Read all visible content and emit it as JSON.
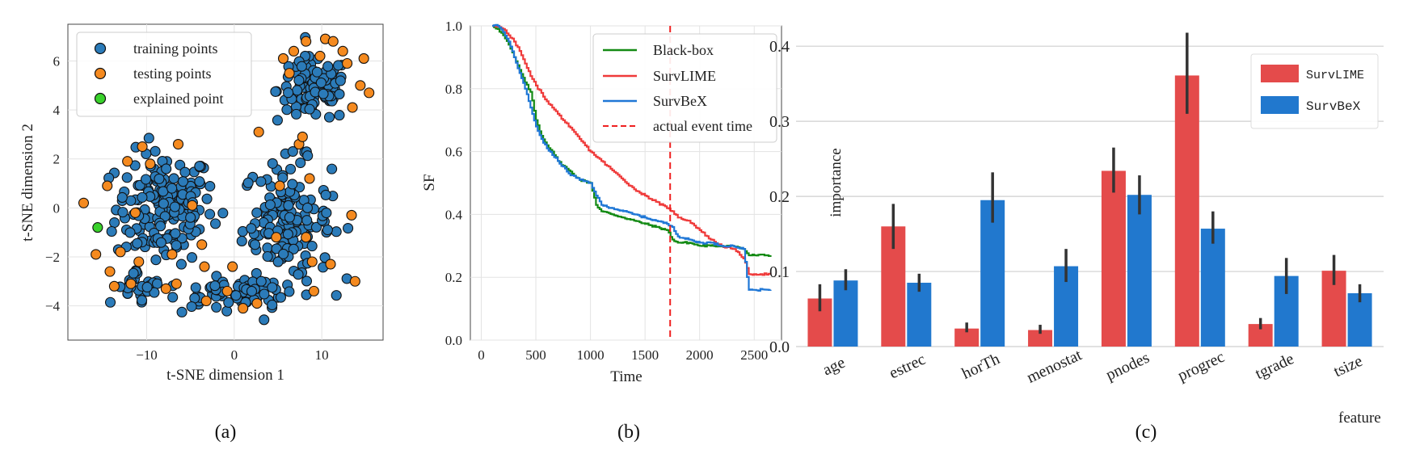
{
  "chart_data": [
    {
      "type": "scatter",
      "caption": "(a)",
      "xlabel": "t-SNE dimension 1",
      "ylabel": "t-SNE dimension 2",
      "xlim": [
        -19,
        17
      ],
      "ylim": [
        -5.4,
        7.5
      ],
      "xticks": [
        -10,
        0,
        10
      ],
      "xtick_labels": [
        "−10",
        "0",
        "10"
      ],
      "yticks": [
        -4,
        -2,
        0,
        2,
        4,
        6
      ],
      "ytick_labels": [
        "−4",
        "−2",
        "0",
        "2",
        "4",
        "6"
      ],
      "legend": [
        "training points",
        "testing points",
        "explained point"
      ],
      "colors": {
        "training": "#2b7bb9",
        "testing": "#f58a1f",
        "explained": "#39d12b"
      },
      "series": [
        {
          "name": "testing points",
          "points": [
            [
              -17.2,
              0.2
            ],
            [
              -14.5,
              0.9
            ],
            [
              -15.8,
              -1.9
            ],
            [
              -14.2,
              -2.6
            ],
            [
              -13.7,
              -3.2
            ],
            [
              -13.0,
              -1.8
            ],
            [
              -12.2,
              1.9
            ],
            [
              -10.5,
              2.5
            ],
            [
              -9.6,
              1.8
            ],
            [
              -11.3,
              -0.2
            ],
            [
              -10.9,
              -2.2
            ],
            [
              -11.8,
              -3.1
            ],
            [
              -7.8,
              -3.3
            ],
            [
              -6.6,
              -3.1
            ],
            [
              -6.4,
              2.6
            ],
            [
              -4.8,
              0.1
            ],
            [
              -3.7,
              -1.5
            ],
            [
              -3.4,
              -2.4
            ],
            [
              -3.2,
              -3.8
            ],
            [
              -0.8,
              -3.4
            ],
            [
              -0.2,
              -2.4
            ],
            [
              1.0,
              -4.1
            ],
            [
              2.6,
              -3.9
            ],
            [
              2.8,
              3.1
            ],
            [
              4.8,
              -1.2
            ],
            [
              5.2,
              0.9
            ],
            [
              5.6,
              6.1
            ],
            [
              6.3,
              5.5
            ],
            [
              6.8,
              6.4
            ],
            [
              7.4,
              2.6
            ],
            [
              8.2,
              6.8
            ],
            [
              8.6,
              1.2
            ],
            [
              8.2,
              -1.2
            ],
            [
              8.9,
              -2.2
            ],
            [
              9.1,
              -3.4
            ],
            [
              9.8,
              6.2
            ],
            [
              10.4,
              6.9
            ],
            [
              11.3,
              6.8
            ],
            [
              12.4,
              6.4
            ],
            [
              12.9,
              5.9
            ],
            [
              13.5,
              4.1
            ],
            [
              13.4,
              -0.3
            ],
            [
              13.8,
              -3.0
            ],
            [
              14.4,
              5.0
            ],
            [
              14.8,
              6.1
            ],
            [
              15.4,
              4.7
            ],
            [
              7.8,
              2.9
            ],
            [
              11.0,
              -2.3
            ],
            [
              -7.1,
              -1.9
            ]
          ]
        },
        {
          "name": "explained point",
          "points": [
            [
              -15.6,
              -0.8
            ]
          ]
        }
      ]
    },
    {
      "type": "line",
      "caption": "(b)",
      "xlabel": "Time",
      "ylabel": "SF",
      "xlim": [
        -100,
        2750
      ],
      "ylim": [
        0.0,
        1.0
      ],
      "xticks": [
        0,
        500,
        1000,
        1500,
        2000,
        2500
      ],
      "yticks": [
        0.0,
        0.2,
        0.4,
        0.6,
        0.8,
        1.0
      ],
      "ytick_labels": [
        "0.0",
        "0.2",
        "0.4",
        "0.6",
        "0.8",
        "1.0"
      ],
      "actual_event_time": 1730,
      "series": [
        {
          "name": "Black-box",
          "color": "#148a14",
          "x": [
            100,
            150,
            200,
            250,
            300,
            350,
            400,
            450,
            500,
            550,
            600,
            650,
            700,
            800,
            900,
            1000,
            1050,
            1100,
            1200,
            1300,
            1400,
            1500,
            1600,
            1700,
            1750,
            1800,
            1900,
            2000,
            2100,
            2200,
            2300,
            2400,
            2450,
            2500,
            2650
          ],
          "y": [
            1.0,
            0.99,
            0.97,
            0.94,
            0.9,
            0.86,
            0.82,
            0.79,
            0.7,
            0.65,
            0.62,
            0.6,
            0.57,
            0.54,
            0.51,
            0.5,
            0.43,
            0.41,
            0.4,
            0.39,
            0.38,
            0.37,
            0.36,
            0.35,
            0.32,
            0.31,
            0.31,
            0.3,
            0.3,
            0.3,
            0.3,
            0.29,
            0.27,
            0.27,
            0.27
          ]
        },
        {
          "name": "SurvLIME",
          "color": "#ef3a3a",
          "x": [
            100,
            150,
            200,
            250,
            300,
            350,
            400,
            450,
            500,
            600,
            700,
            800,
            900,
            1000,
            1100,
            1200,
            1300,
            1400,
            1500,
            1600,
            1700,
            1750,
            1800,
            1900,
            2000,
            2100,
            2200,
            2300,
            2350,
            2400,
            2450,
            2500,
            2650
          ],
          "y": [
            1.0,
            1.0,
            0.99,
            0.97,
            0.95,
            0.92,
            0.88,
            0.84,
            0.81,
            0.76,
            0.72,
            0.68,
            0.64,
            0.6,
            0.57,
            0.54,
            0.51,
            0.48,
            0.46,
            0.44,
            0.42,
            0.41,
            0.39,
            0.38,
            0.35,
            0.32,
            0.3,
            0.29,
            0.28,
            0.26,
            0.21,
            0.21,
            0.21
          ]
        },
        {
          "name": "SurvBeX",
          "color": "#1f77d6",
          "x": [
            100,
            150,
            200,
            250,
            300,
            350,
            400,
            450,
            500,
            550,
            600,
            700,
            800,
            900,
            1000,
            1050,
            1100,
            1200,
            1300,
            1400,
            1500,
            1600,
            1700,
            1750,
            1800,
            1900,
            2000,
            2100,
            2200,
            2300,
            2400,
            2450,
            2500,
            2650
          ],
          "y": [
            1.0,
            1.0,
            0.98,
            0.95,
            0.9,
            0.85,
            0.8,
            0.74,
            0.68,
            0.64,
            0.61,
            0.57,
            0.53,
            0.51,
            0.5,
            0.46,
            0.43,
            0.42,
            0.41,
            0.4,
            0.39,
            0.38,
            0.37,
            0.36,
            0.33,
            0.32,
            0.31,
            0.31,
            0.3,
            0.3,
            0.29,
            0.16,
            0.16,
            0.16
          ]
        }
      ],
      "legend": [
        "Black-box",
        "SurvLIME",
        "SurvBeX",
        "actual event time"
      ]
    },
    {
      "type": "bar",
      "caption": "(c)",
      "xlabel": "feature",
      "ylabel": "importance",
      "ylim": [
        0.0,
        0.44
      ],
      "yticks": [
        0.0,
        0.1,
        0.2,
        0.3,
        0.4
      ],
      "ytick_labels": [
        "0.0",
        "0.1",
        "0.2",
        "0.3",
        "0.4"
      ],
      "categories": [
        "age",
        "estrec",
        "horTh",
        "menostat",
        "pnodes",
        "progrec",
        "tgrade",
        "tsize"
      ],
      "series": [
        {
          "name": "SurvLIME",
          "color": "#e44b4b",
          "values": [
            0.064,
            0.16,
            0.024,
            0.022,
            0.234,
            0.361,
            0.03,
            0.101
          ],
          "err": [
            [
              0.047,
              0.083
            ],
            [
              0.13,
              0.19
            ],
            [
              0.019,
              0.032
            ],
            [
              0.017,
              0.029
            ],
            [
              0.205,
              0.265
            ],
            [
              0.31,
              0.418
            ],
            [
              0.023,
              0.038
            ],
            [
              0.082,
              0.122
            ]
          ]
        },
        {
          "name": "SurvBeX",
          "color": "#2178ce",
          "values": [
            0.088,
            0.085,
            0.195,
            0.107,
            0.202,
            0.157,
            0.094,
            0.071
          ],
          "err": [
            [
              0.075,
              0.103
            ],
            [
              0.073,
              0.097
            ],
            [
              0.165,
              0.232
            ],
            [
              0.086,
              0.13
            ],
            [
              0.176,
              0.228
            ],
            [
              0.137,
              0.18
            ],
            [
              0.07,
              0.118
            ],
            [
              0.059,
              0.083
            ]
          ]
        }
      ]
    }
  ]
}
